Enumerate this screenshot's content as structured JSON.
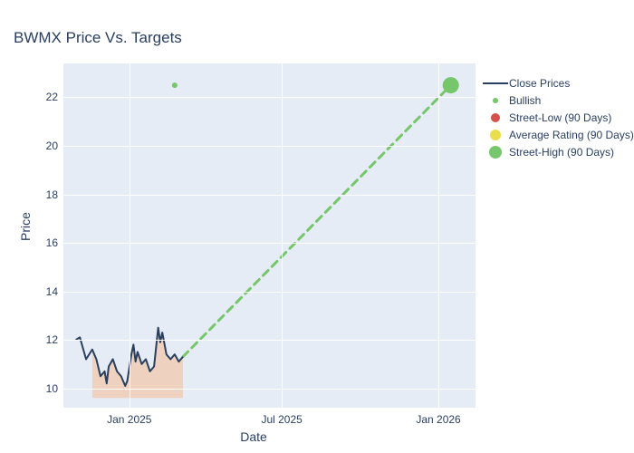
{
  "title": "BWMX Price Vs. Targets",
  "xlabel": "Date",
  "ylabel": "Price",
  "plot": {
    "background_color": "#e5ecf6",
    "grid_color": "#ffffff",
    "ylim": [
      9.2,
      23.4
    ],
    "yticks": [
      10,
      12,
      14,
      16,
      18,
      20,
      22
    ],
    "xlim": [
      0,
      1
    ],
    "xticks": [
      {
        "pos": 0.16,
        "label": "Jan 2025"
      },
      {
        "pos": 0.53,
        "label": "Jul 2025"
      },
      {
        "pos": 0.91,
        "label": "Jan 2026"
      }
    ],
    "xtick_fontsize": 12,
    "ytick_fontsize": 12,
    "axis_label_fontsize": 14,
    "axis_label_color": "#2a3f5f"
  },
  "series": {
    "close_prices": {
      "color": "#2a3f5f",
      "width": 2,
      "points": [
        [
          0.03,
          12.0
        ],
        [
          0.04,
          12.1
        ],
        [
          0.055,
          11.2
        ],
        [
          0.07,
          11.6
        ],
        [
          0.08,
          11.2
        ],
        [
          0.09,
          10.5
        ],
        [
          0.1,
          10.7
        ],
        [
          0.105,
          10.2
        ],
        [
          0.11,
          10.9
        ],
        [
          0.12,
          11.2
        ],
        [
          0.13,
          10.7
        ],
        [
          0.14,
          10.5
        ],
        [
          0.15,
          10.1
        ],
        [
          0.155,
          10.3
        ],
        [
          0.165,
          11.4
        ],
        [
          0.17,
          11.8
        ],
        [
          0.175,
          11.1
        ],
        [
          0.18,
          11.5
        ],
        [
          0.19,
          11.0
        ],
        [
          0.2,
          11.2
        ],
        [
          0.21,
          10.7
        ],
        [
          0.22,
          10.9
        ],
        [
          0.23,
          12.5
        ],
        [
          0.235,
          11.9
        ],
        [
          0.24,
          12.3
        ],
        [
          0.25,
          11.4
        ],
        [
          0.26,
          11.2
        ],
        [
          0.27,
          11.4
        ],
        [
          0.28,
          11.1
        ],
        [
          0.29,
          11.3
        ]
      ]
    },
    "shaded_region": {
      "color": "#f8b27a",
      "x0": 0.07,
      "x1": 0.29,
      "ylow": 9.6
    },
    "projection_line": {
      "color": "#76c76b",
      "width": 3,
      "dash": "8 6",
      "points": [
        [
          0.29,
          11.3
        ],
        [
          0.94,
          22.5
        ]
      ]
    },
    "bullish_small": {
      "color": "#76c76b",
      "radius": 3,
      "x": 0.27,
      "y": 22.5
    },
    "target_marker": {
      "color": "#76c76b",
      "radius": 9,
      "x": 0.94,
      "y": 22.5
    }
  },
  "legend": {
    "items": [
      {
        "type": "line",
        "color": "#2a3f5f",
        "label": "Close Prices"
      },
      {
        "type": "dot",
        "color": "#76c76b",
        "size": 6,
        "label": "Bullish"
      },
      {
        "type": "dot",
        "color": "#d6504b",
        "size": 10,
        "label": "Street-Low (90 Days)"
      },
      {
        "type": "dot",
        "color": "#eade4c",
        "size": 12,
        "label": "Average Rating (90 Days)"
      },
      {
        "type": "dot",
        "color": "#76c76b",
        "size": 14,
        "label": "Street-High (90 Days)"
      }
    ]
  }
}
